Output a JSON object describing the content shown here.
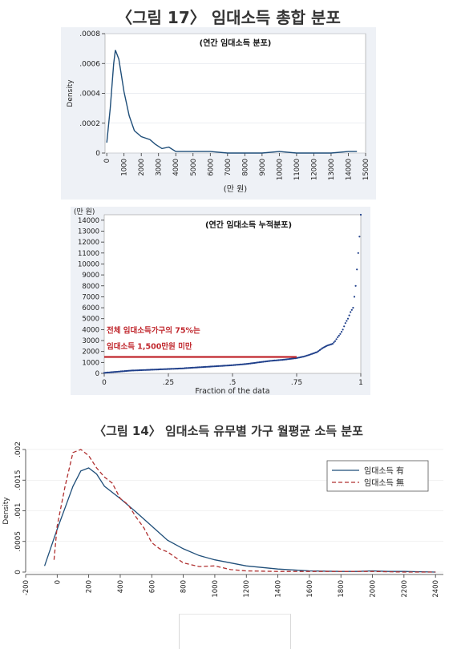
{
  "figure1_title": "〈그림 17〉  임대소득 총합 분포",
  "figure2_title": "〈그림 14〉 임대소득 유무별 가구 월평균 소득 분포",
  "colors": {
    "line_blue": "#1f4e79",
    "cum_blue": "#1f3f8a",
    "ref_red": "#c0272d",
    "annot_red": "#c0272d",
    "dash_red": "#b03030",
    "panel_bg": "#eef1f6"
  },
  "chart_data": [
    {
      "type": "line",
      "title": "(연간 임대소득 분포)",
      "xlabel": "(만 원)",
      "ylabel": "Density",
      "xlim": [
        -100,
        15000
      ],
      "ylim": [
        0,
        0.0008
      ],
      "xticks": [
        0,
        1000,
        2000,
        3000,
        4000,
        5000,
        6000,
        7000,
        8000,
        9000,
        10000,
        11000,
        12000,
        13000,
        14000,
        15000
      ],
      "xtick_labels": [
        "0",
        "1000",
        "2000",
        "3000",
        "4000",
        "5000",
        "6000",
        "7000",
        "8000",
        "9000",
        "10000",
        "11000",
        "12000",
        "13000",
        "14000",
        "15000"
      ],
      "yticks": [
        0,
        0.0002,
        0.0004,
        0.0006,
        0.0008
      ],
      "ytick_labels": [
        "0",
        ".0002",
        ".0004",
        ".0006",
        ".0008"
      ],
      "series": [
        {
          "x": [
            0,
            200,
            400,
            500,
            700,
            1000,
            1300,
            1600,
            2000,
            2500,
            2800,
            3200,
            3600,
            4000,
            4500,
            5000,
            6000,
            7000,
            8000,
            9000,
            10000,
            11000,
            12000,
            13000,
            14000,
            14500
          ],
          "y": [
            7e-05,
            0.0003,
            0.0006,
            0.00069,
            0.00063,
            0.00041,
            0.00025,
            0.00015,
            0.00011,
            9e-05,
            6e-05,
            3e-05,
            4e-05,
            1e-05,
            1e-05,
            1e-05,
            1e-05,
            0.0,
            0.0,
            0.0,
            1e-05,
            0.0,
            0.0,
            0.0,
            1e-05,
            1e-05
          ]
        }
      ]
    },
    {
      "type": "scatter",
      "title": "(연간 임대소득 누적분포)",
      "xlabel": "Fraction of the data",
      "ylabel": "(만 원)",
      "xlim": [
        0,
        1
      ],
      "ylim": [
        0,
        14500
      ],
      "xticks": [
        0,
        0.25,
        0.5,
        0.75,
        1
      ],
      "xtick_labels": [
        "0",
        ".25",
        ".5",
        ".75",
        "1"
      ],
      "yticks": [
        0,
        1000,
        2000,
        3000,
        4000,
        5000,
        6000,
        7000,
        8000,
        9000,
        10000,
        11000,
        12000,
        13000,
        14000
      ],
      "ytick_labels": [
        "0",
        "1000",
        "2000",
        "3000",
        "4000",
        "5000",
        "6000",
        "7000",
        "8000",
        "9000",
        "10000",
        "11000",
        "12000",
        "13000",
        "14000"
      ],
      "series": [
        {
          "x": [
            0,
            0.05,
            0.1,
            0.2,
            0.3,
            0.4,
            0.5,
            0.55,
            0.6,
            0.65,
            0.7,
            0.75,
            0.78,
            0.8,
            0.83,
            0.85,
            0.87,
            0.89,
            0.9,
            0.91,
            0.92,
            0.93,
            0.94,
            0.95,
            0.96,
            0.97,
            0.975,
            0.98,
            0.985,
            0.99,
            0.995,
            1.0
          ],
          "y": [
            50,
            150,
            250,
            350,
            450,
            600,
            750,
            850,
            1000,
            1150,
            1250,
            1400,
            1550,
            1700,
            1950,
            2300,
            2550,
            2700,
            2950,
            3300,
            3600,
            4000,
            4600,
            5000,
            5600,
            6000,
            7000,
            8000,
            9500,
            11000,
            12500,
            14500
          ]
        }
      ],
      "reference_line": {
        "y": 1500,
        "x_from": 0,
        "x_to": 0.75
      },
      "annotations": [
        "전체 임대소득가구의 75%는",
        "임대소득 1,500만원 미만"
      ]
    },
    {
      "type": "line",
      "title": "",
      "xlabel": "",
      "ylabel": "Density",
      "xlim": [
        -200,
        2450
      ],
      "ylim": [
        0,
        0.002
      ],
      "xticks": [
        -200,
        0,
        200,
        400,
        600,
        800,
        1000,
        1200,
        1400,
        1600,
        1800,
        2000,
        2200,
        2400
      ],
      "xtick_labels": [
        "-200",
        "0",
        "200",
        "400",
        "600",
        "800",
        "1000",
        "1200",
        "1400",
        "1600",
        "1800",
        "2000",
        "2200",
        "2400"
      ],
      "yticks": [
        0,
        0.0005,
        0.001,
        0.0015,
        0.002
      ],
      "ytick_labels": [
        "0",
        ".0005",
        ".001",
        ".0015",
        ".002"
      ],
      "legend_position": "top-right",
      "series": [
        {
          "name": "임대소득 有",
          "style": "solid",
          "x": [
            -80,
            0,
            50,
            100,
            150,
            200,
            250,
            300,
            400,
            500,
            600,
            700,
            800,
            900,
            1000,
            1200,
            1400,
            1600,
            1800,
            1900,
            2000,
            2100,
            2200,
            2400
          ],
          "y": [
            0.0001,
            0.0007,
            0.00105,
            0.0014,
            0.00165,
            0.0017,
            0.0016,
            0.0014,
            0.0012,
            0.00098,
            0.00075,
            0.00052,
            0.00038,
            0.00027,
            0.0002,
            0.0001,
            5e-05,
            2e-05,
            1e-05,
            1e-05,
            2e-05,
            1e-05,
            1e-05,
            0.0
          ]
        },
        {
          "name": "임대소득 無",
          "style": "dashed",
          "x": [
            -20,
            0,
            50,
            100,
            150,
            200,
            250,
            300,
            350,
            400,
            450,
            500,
            550,
            600,
            650,
            700,
            800,
            900,
            1000,
            1100,
            1200,
            1400,
            1600,
            1800,
            2000,
            2200,
            2400
          ],
          "y": [
            0.0002,
            0.00075,
            0.0014,
            0.00195,
            0.002,
            0.0019,
            0.0017,
            0.00155,
            0.00145,
            0.0012,
            0.0011,
            0.0009,
            0.00072,
            0.00048,
            0.00038,
            0.00033,
            0.00015,
            9e-05,
            0.0001,
            4e-05,
            2e-05,
            1e-05,
            1e-05,
            1e-05,
            1e-05,
            0.0,
            0.0
          ]
        }
      ]
    }
  ]
}
